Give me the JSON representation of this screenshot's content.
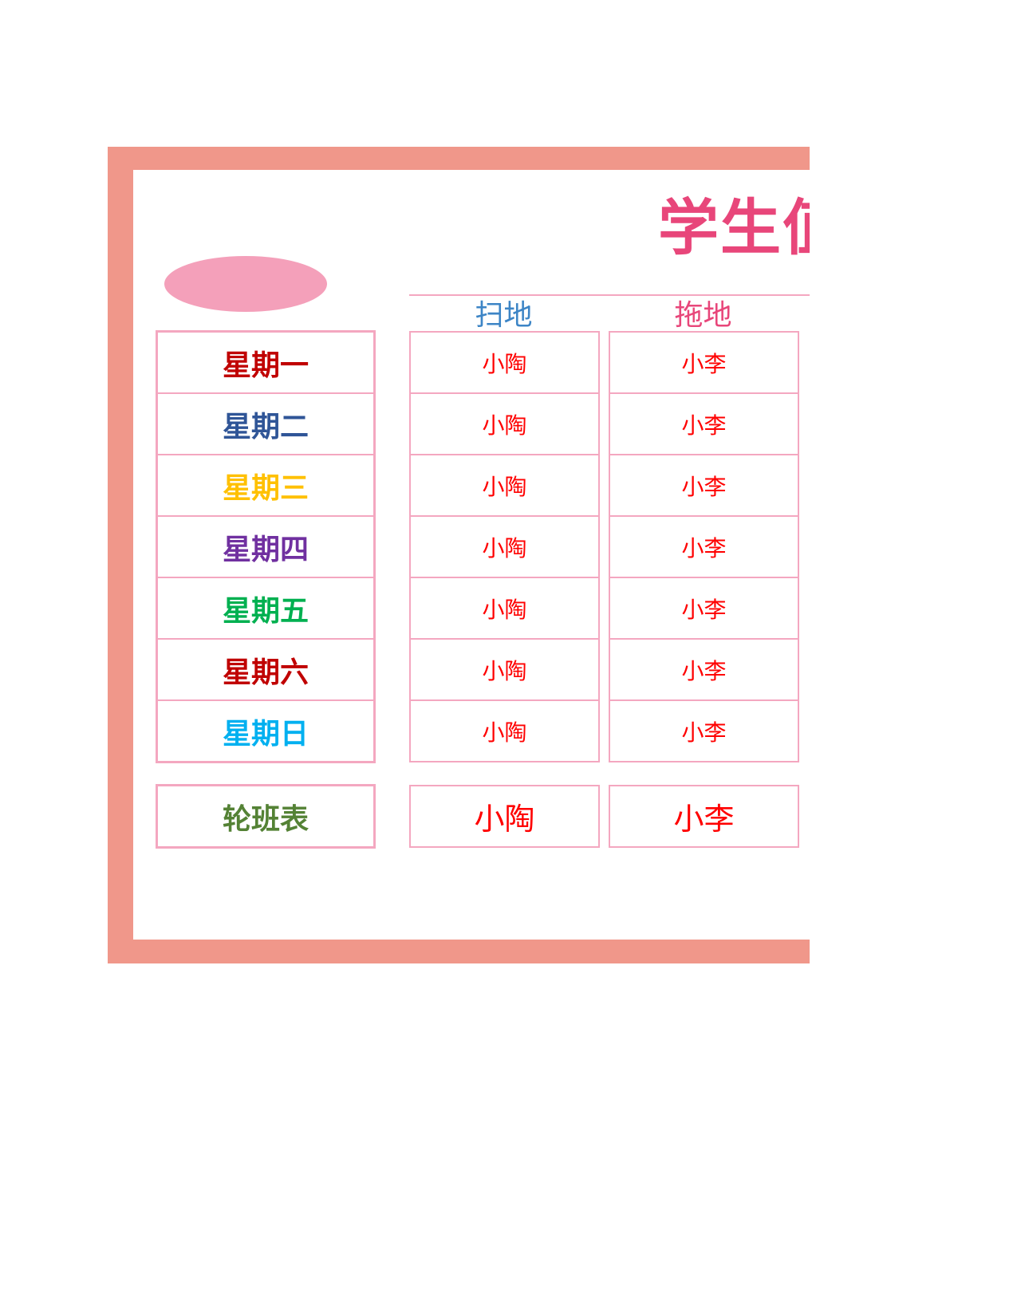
{
  "title": "学生值",
  "colors": {
    "frame": "#f0978a",
    "title": "#e8467a",
    "oval": "#f4a0ba",
    "cell_border": "#f4a7c0",
    "name_text": "#ff0000"
  },
  "headers": [
    {
      "label": "扫地",
      "color": "#3d85c6"
    },
    {
      "label": "拖地",
      "color": "#e8467a"
    }
  ],
  "days": [
    {
      "label": "星期一",
      "color": "#c00000"
    },
    {
      "label": "星期二",
      "color": "#2f5597"
    },
    {
      "label": "星期三",
      "color": "#ffc000"
    },
    {
      "label": "星期四",
      "color": "#7030a0"
    },
    {
      "label": "星期五",
      "color": "#00b050"
    },
    {
      "label": "星期六",
      "color": "#c00000"
    },
    {
      "label": "星期日",
      "color": "#00b0f0"
    }
  ],
  "sweep": [
    "小陶",
    "小陶",
    "小陶",
    "小陶",
    "小陶",
    "小陶",
    "小陶"
  ],
  "mop": [
    "小李",
    "小李",
    "小李",
    "小李",
    "小李",
    "小李",
    "小李"
  ],
  "rotation": {
    "label": "轮班表",
    "label_color": "#548235",
    "sweep": "小陶",
    "mop": "小李"
  }
}
